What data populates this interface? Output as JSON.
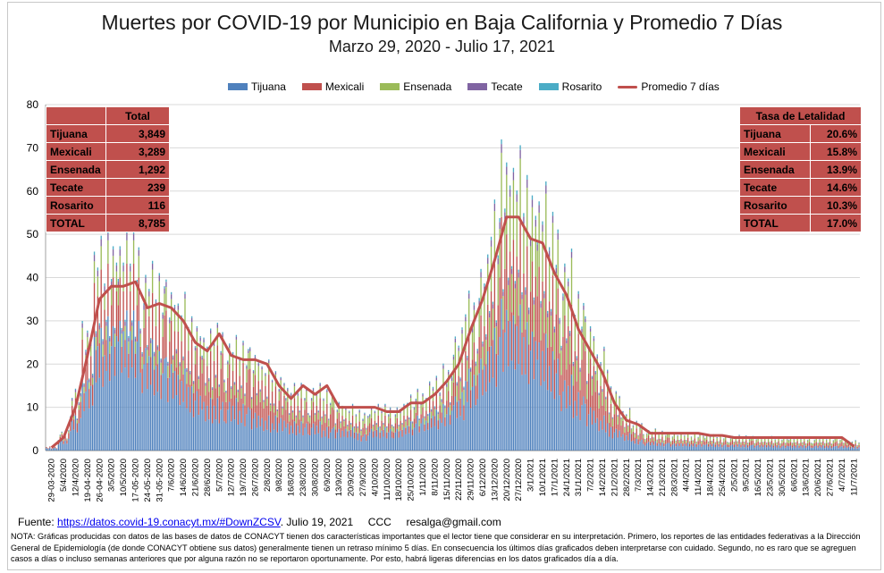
{
  "title": "Muertes por COVID-19 por Municipio en Baja California y Promedio 7 Días",
  "subtitle": "Marzo 29, 2020 - Julio 17, 2021",
  "legend": [
    {
      "name": "Tijuana",
      "color": "#4f81bd"
    },
    {
      "name": "Mexicali",
      "color": "#c0504d"
    },
    {
      "name": "Ensenada",
      "color": "#9bbb59"
    },
    {
      "name": "Tecate",
      "color": "#8064a2"
    },
    {
      "name": "Rosarito",
      "color": "#4bacc6"
    },
    {
      "name": "Promedio 7 días",
      "color": "#c0504d"
    }
  ],
  "totals_table": {
    "header": "Total",
    "rows": [
      {
        "label": "Tijuana",
        "value": "3,849"
      },
      {
        "label": "Mexicali",
        "value": "3,289"
      },
      {
        "label": "Ensenada",
        "value": "1,292"
      },
      {
        "label": "Tecate",
        "value": "239"
      },
      {
        "label": "Rosarito",
        "value": "116"
      },
      {
        "label": "TOTAL",
        "value": "8,785"
      }
    ]
  },
  "lethality_table": {
    "header": "Tasa de Letalidad",
    "rows": [
      {
        "label": "Tijuana",
        "value": "20.6%"
      },
      {
        "label": "Mexicali",
        "value": "15.8%"
      },
      {
        "label": "Ensenada",
        "value": "13.9%"
      },
      {
        "label": "Tecate",
        "value": "14.6%"
      },
      {
        "label": "Rosarito",
        "value": "10.3%"
      },
      {
        "label": "TOTAL",
        "value": "17.0%"
      }
    ]
  },
  "source": {
    "prefix": "Fuente:",
    "link": "https://datos.covid-19.conacyt.mx/#DownZCSV",
    "suffix": ". Julio 19, 2021     CCC     resalga@gmail.com"
  },
  "note": "NOTA: Gráficas producidas con datos de las bases de datos de CONACYT tienen dos características importantes que el lector tiene que considerar en su interpretación. Primero, los reportes de las entidades federativas a la Dirección General de Epidemiología (de donde CONACYT obtiene sus datos) generalmente tienen un retraso mínimo 5 días. En consecuencia los últimos días graficados deben interpretarse con cuidado. Segundo, no es raro que se agreguen casos a días o incluso semanas anteriores que por alguna razón no se reportaron oportunamente. Por esto, habrá ligeras diferencias en los datos graficados día a día.",
  "chart_data": {
    "type": "bar",
    "stacked": true,
    "ylim": [
      0,
      80
    ],
    "yticks": [
      0,
      10,
      20,
      30,
      40,
      50,
      60,
      70,
      80
    ],
    "grid": true,
    "legend_position": "top",
    "start_date": "2020-03-29",
    "end_date": "2021-07-17",
    "x_tick_labels": [
      "29-03-2020",
      "5/4/2020",
      "12/4/2020",
      "19-04-2020",
      "26-04-2020",
      "3/5/2020",
      "10/5/2020",
      "17-05-2020",
      "24-05-2020",
      "31-05-2020",
      "7/6/2020",
      "14/6/2020",
      "21/6/2020",
      "28/6/2020",
      "5/7/2020",
      "12/7/2020",
      "19/7/2020",
      "26/7/2020",
      "2/8/2020",
      "9/8/2020",
      "16/8/2020",
      "23/8/2020",
      "30/8/2020",
      "6/9/2020",
      "13/9/2020",
      "20/9/2020",
      "27/9/2020",
      "4/10/2020",
      "11/10/2020",
      "18/10/2020",
      "25/10/2020",
      "1/11/2020",
      "8/11/2020",
      "15/11/2020",
      "22/11/2020",
      "29/11/2020",
      "6/12/2020",
      "13/12/2020",
      "20/12/2020",
      "27/12/2020",
      "3/1/2021",
      "10/1/2021",
      "17/1/2021",
      "24/1/2021",
      "31/1/2021",
      "7/2/2021",
      "14/2/2021",
      "21/2/2021",
      "28/2/2021",
      "7/3/2021",
      "14/3/2021",
      "21/3/2021",
      "28/3/2021",
      "4/4/2021",
      "11/4/2021",
      "18/4/2021",
      "25/4/2021",
      "2/5/2021",
      "9/5/2021",
      "16/5/2021",
      "23/5/2021",
      "30/5/2021",
      "6/6/2021",
      "13/6/2021",
      "20/6/2021",
      "27/6/2021",
      "4/7/2021",
      "11/7/2021"
    ],
    "series": [
      {
        "name": "Tijuana",
        "weekly_avg_values": [
          0.5,
          2,
          6,
          13,
          21,
          23,
          24,
          24,
          19,
          17,
          16,
          14,
          11,
          9,
          9,
          9,
          8,
          7,
          6,
          6,
          5,
          5,
          5,
          4,
          4,
          4,
          3,
          4,
          4,
          4,
          5,
          6,
          7,
          8,
          10,
          14,
          17,
          21,
          26,
          25,
          22,
          20,
          17,
          13,
          10,
          8,
          6,
          4,
          3,
          2,
          1.6,
          1.4,
          1.3,
          1.3,
          1.2,
          1.2,
          1.1,
          1.1,
          1,
          1,
          1,
          0.9,
          0.9,
          0.9,
          0.9,
          0.8,
          0.8,
          0.7
        ]
      },
      {
        "name": "Mexicali",
        "weekly_avg_values": [
          0.2,
          1,
          3,
          6,
          10,
          9,
          8,
          8,
          8,
          8,
          8,
          8,
          8,
          8,
          9,
          7,
          7,
          7,
          7,
          5,
          4,
          4,
          4,
          4,
          3,
          2,
          2,
          2,
          2,
          2,
          2,
          2,
          3,
          3,
          5,
          6,
          8,
          11,
          14,
          14,
          13,
          14,
          13,
          12,
          10,
          9,
          7,
          4,
          2.5,
          1.8,
          1.2,
          1,
          0.9,
          0.9,
          0.9,
          0.8,
          0.8,
          0.8,
          0.8,
          0.7,
          0.7,
          0.7,
          0.7,
          0.7,
          0.7,
          0.7,
          0.8,
          0.5
        ]
      },
      {
        "name": "Ensenada",
        "weekly_avg_values": [
          0,
          0.3,
          1,
          2,
          4,
          4,
          4,
          4,
          4,
          4,
          4,
          4,
          3,
          3,
          3,
          3,
          3,
          3,
          2,
          2,
          2,
          2,
          2,
          2,
          1.5,
          1.5,
          1.5,
          1.5,
          1.5,
          1.5,
          2,
          2,
          2,
          3,
          5,
          6,
          7,
          9,
          11,
          11,
          10,
          10,
          9,
          8,
          6,
          5,
          4,
          2.5,
          1.5,
          1,
          0.8,
          0.8,
          0.7,
          0.7,
          0.7,
          0.6,
          0.6,
          0.6,
          0.6,
          0.6,
          0.6,
          0.6,
          0.6,
          0.6,
          0.6,
          0.6,
          0.6,
          0.4
        ]
      },
      {
        "name": "Tecate",
        "weekly_avg_values": [
          0,
          0.1,
          0.4,
          0.8,
          1.2,
          1.2,
          1.2,
          1.1,
          1,
          1,
          0.9,
          0.8,
          0.7,
          0.6,
          0.6,
          0.5,
          0.5,
          0.5,
          0.4,
          0.4,
          0.4,
          0.4,
          0.4,
          0.3,
          0.3,
          0.3,
          0.3,
          0.3,
          0.3,
          0.3,
          0.4,
          0.4,
          0.5,
          0.6,
          0.7,
          0.9,
          1,
          1.3,
          1.5,
          1.5,
          1.4,
          1.4,
          1.2,
          1,
          0.8,
          0.6,
          0.5,
          0.3,
          0.2,
          0.2,
          0.1,
          0.1,
          0.1,
          0.1,
          0.1,
          0.1,
          0.1,
          0.1,
          0.1,
          0.1,
          0.1,
          0.1,
          0.1,
          0.1,
          0.1,
          0.1,
          0.1,
          0.1
        ]
      },
      {
        "name": "Rosarito",
        "weekly_avg_values": [
          0,
          0.1,
          0.2,
          0.4,
          0.6,
          0.6,
          0.6,
          0.5,
          0.5,
          0.4,
          0.4,
          0.4,
          0.3,
          0.3,
          0.3,
          0.3,
          0.3,
          0.2,
          0.2,
          0.2,
          0.2,
          0.2,
          0.2,
          0.2,
          0.2,
          0.2,
          0.2,
          0.2,
          0.2,
          0.2,
          0.2,
          0.2,
          0.3,
          0.3,
          0.4,
          0.5,
          0.6,
          0.7,
          0.8,
          0.8,
          0.8,
          0.7,
          0.7,
          0.6,
          0.5,
          0.4,
          0.3,
          0.2,
          0.1,
          0.1,
          0.1,
          0.1,
          0.1,
          0.1,
          0.1,
          0.1,
          0.1,
          0.1,
          0.1,
          0.1,
          0.1,
          0.1,
          0.1,
          0.1,
          0.1,
          0.1,
          0.1,
          0.1
        ]
      }
    ],
    "line": {
      "name": "Promedio 7 días",
      "weekly_values": [
        0.7,
        3,
        10,
        22,
        35,
        38,
        38,
        39,
        33,
        34,
        33,
        30,
        25,
        23,
        27,
        22,
        21,
        21,
        20,
        15,
        12,
        15,
        13,
        15,
        10,
        10,
        10,
        10,
        9,
        9,
        11,
        11,
        13,
        16,
        20,
        28,
        35,
        44,
        54,
        54,
        49,
        48,
        41,
        36,
        28,
        23,
        18,
        11,
        7,
        6,
        4,
        4,
        4,
        4,
        4,
        3.5,
        3.5,
        3,
        3,
        3,
        3,
        3,
        3,
        3,
        3,
        3,
        3,
        1
      ]
    }
  }
}
